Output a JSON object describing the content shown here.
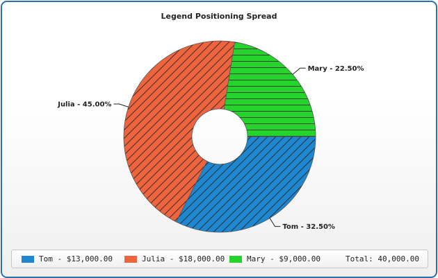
{
  "chart_data": {
    "type": "pie",
    "title": "Legend Positioning Spread",
    "slices": [
      {
        "name": "Tom",
        "value": 13000,
        "percent": 32.5,
        "color": "#1f87cf",
        "label": "Tom - 32.50%",
        "legend_label": "Tom - $13,000.00"
      },
      {
        "name": "Julia",
        "value": 18000,
        "percent": 45.0,
        "color": "#ee643f",
        "label": "Julia - 45.00%",
        "legend_label": "Julia - $18,000.00"
      },
      {
        "name": "Mary",
        "value": 9000,
        "percent": 22.5,
        "color": "#26d22c",
        "label": "Mary - 22.50%",
        "legend_label": "Mary - $9,000.00"
      }
    ],
    "hatch_patterns": {
      "Tom": "diagonal",
      "Julia": "diagonal",
      "Mary": "horizontal"
    },
    "donut": true,
    "legend": {
      "position": "bottom",
      "total_label": "Total: 40,000.00"
    }
  }
}
